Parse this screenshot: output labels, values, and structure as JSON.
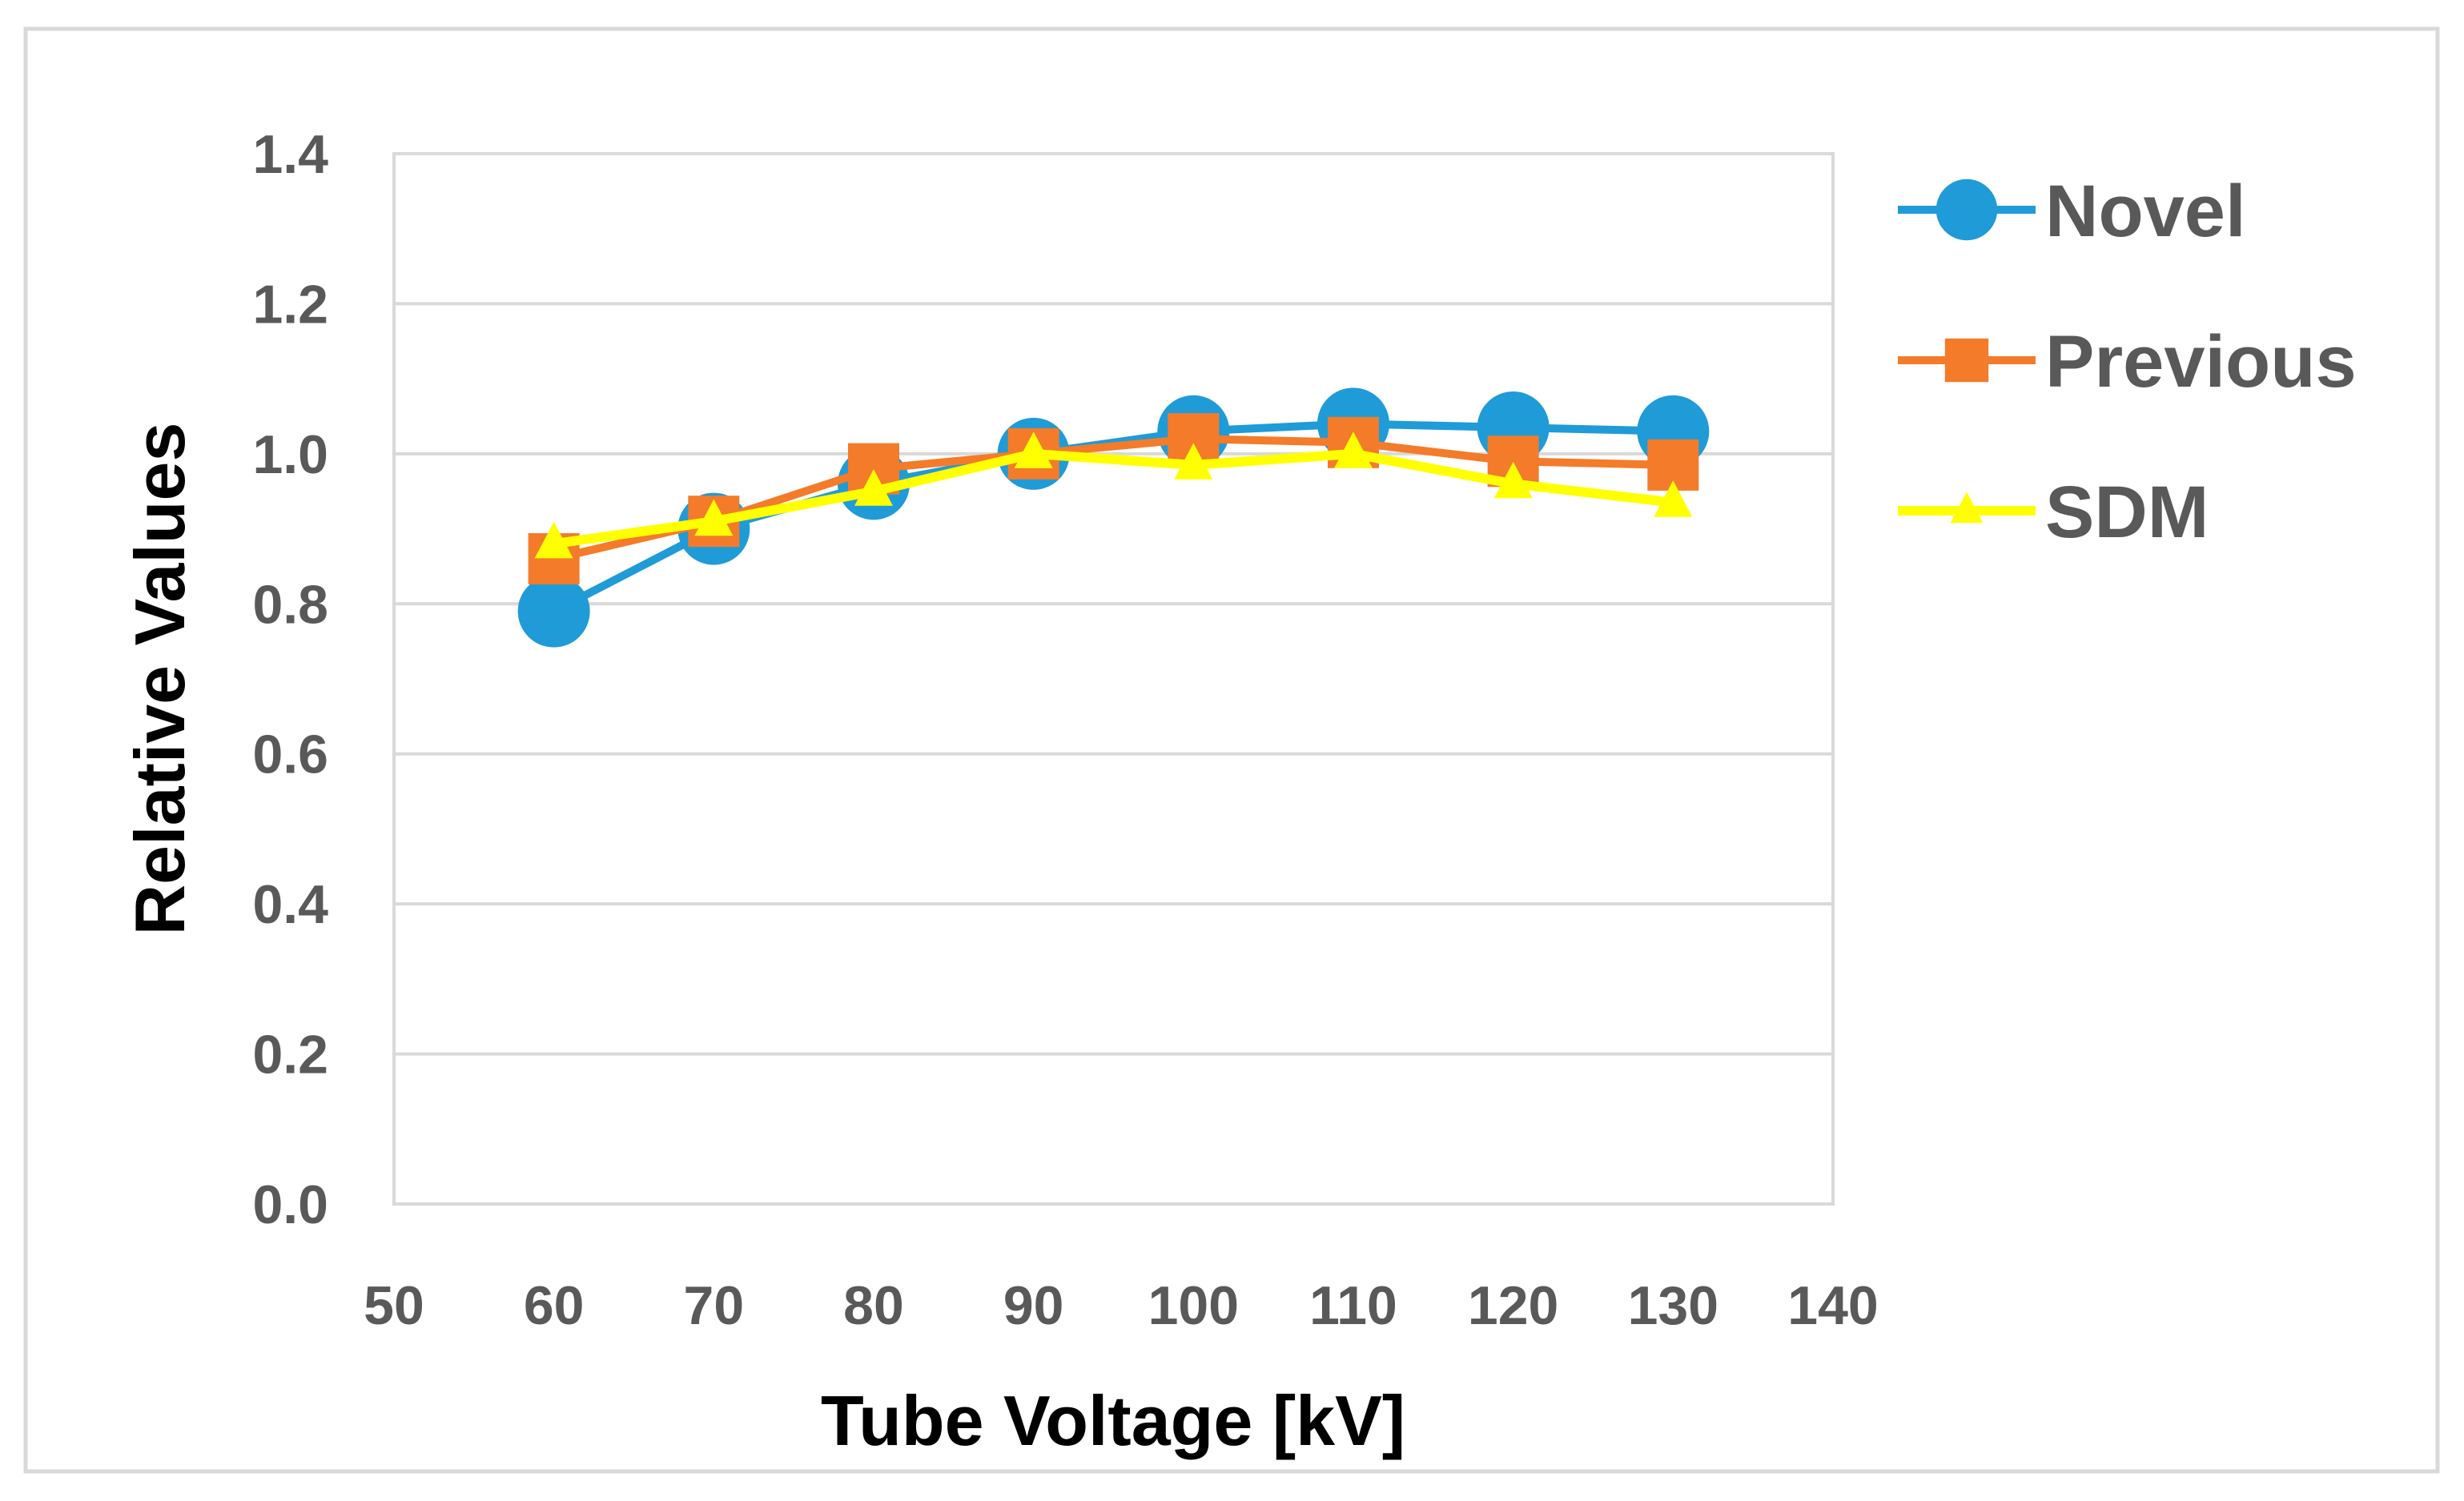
{
  "chart_data": {
    "type": "line",
    "title": "",
    "xlabel": "Tube Voltage [kV]",
    "ylabel": "Relative Values",
    "xlim": [
      50,
      140
    ],
    "ylim": [
      0,
      1.4
    ],
    "x_ticks": [
      "50",
      "60",
      "70",
      "80",
      "90",
      "100",
      "110",
      "120",
      "130",
      "140"
    ],
    "y_ticks": [
      "0.0",
      "0.2",
      "0.4",
      "0.6",
      "0.8",
      "1.0",
      "1.2",
      "1.4"
    ],
    "grid": true,
    "legend_position": "right",
    "x": [
      60,
      70,
      80,
      90,
      100,
      110,
      120,
      130
    ],
    "series": [
      {
        "name": "Novel",
        "color": "#1f9bd7",
        "marker": "circle",
        "values": [
          0.79,
          0.9,
          0.96,
          1.0,
          1.03,
          1.04,
          1.035,
          1.03
        ]
      },
      {
        "name": "Previous",
        "color": "#f47b2a",
        "marker": "square",
        "values": [
          0.86,
          0.91,
          0.98,
          1.0,
          1.02,
          1.015,
          0.99,
          0.985
        ]
      },
      {
        "name": "SDM",
        "color": "#ffff00",
        "marker": "triangle",
        "values": [
          0.88,
          0.91,
          0.95,
          1.0,
          0.985,
          1.0,
          0.96,
          0.935
        ]
      }
    ]
  }
}
